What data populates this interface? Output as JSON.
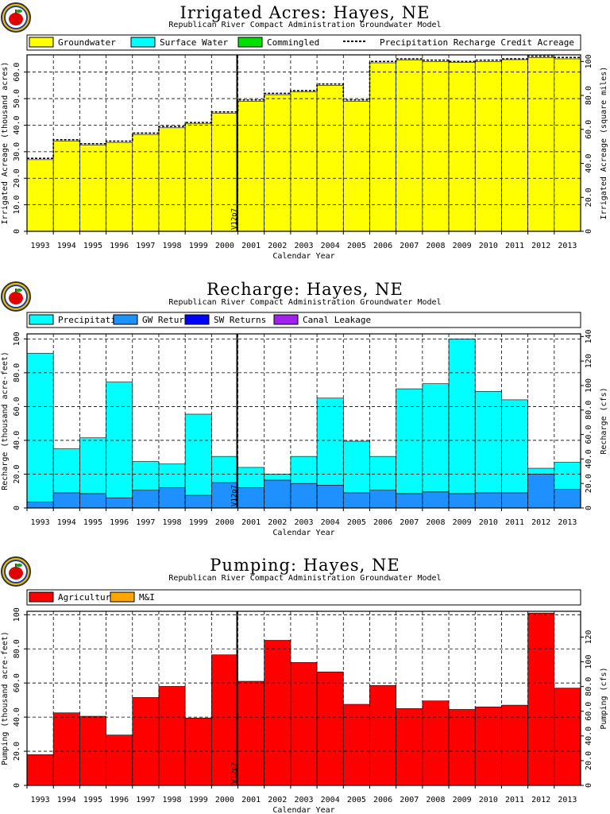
{
  "chart_data": [
    {
      "type": "bar",
      "title": "Irrigated Acres: Hayes, NE",
      "subtitle": "Republican River Compact Administration Groundwater Model",
      "xlabel": "Calendar Year",
      "ylabel": "Irrigated Acreage (thousand acres)",
      "ylabel_right": "Irrigated Acreage (square miles)",
      "categories": [
        "1993",
        "1994",
        "1995",
        "1996",
        "1997",
        "1998",
        "1999",
        "2000",
        "2001",
        "2002",
        "2003",
        "2004",
        "2005",
        "2006",
        "2007",
        "2008",
        "2009",
        "2010",
        "2011",
        "2012",
        "2013"
      ],
      "ylim": [
        0,
        66.5
      ],
      "yticks": [
        "0",
        "10.0",
        "20.0",
        "30.0",
        "40.0",
        "50.0",
        "60.0"
      ],
      "yticks_right": [
        "0",
        "20.0",
        "40.0",
        "60.0",
        "80.0",
        "100"
      ],
      "right_max": 103.9,
      "vline_label": "V12p7",
      "vline_after": "2000",
      "series": [
        {
          "name": "Groundwater",
          "color": "#ffff00",
          "values": [
            27.0,
            34.0,
            32.5,
            33.5,
            36.5,
            39.0,
            40.5,
            44.5,
            49.0,
            51.5,
            52.5,
            55.0,
            49.0,
            63.5,
            64.5,
            64.0,
            63.7,
            64.0,
            64.7,
            65.5,
            65.0
          ]
        },
        {
          "name": "Surface Water",
          "color": "#00ffff",
          "values": [
            0,
            0,
            0,
            0,
            0,
            0,
            0,
            0,
            0,
            0,
            0,
            0,
            0,
            0,
            0,
            0,
            0,
            0,
            0,
            0,
            0
          ]
        },
        {
          "name": "Commingled",
          "color": "#00e000",
          "values": [
            0,
            0,
            0,
            0,
            0,
            0,
            0,
            0,
            0,
            0,
            0,
            0,
            0,
            0,
            0,
            0,
            0,
            0,
            0,
            0,
            0
          ]
        }
      ],
      "line_series": {
        "name": "Precipitation Recharge Credit Acreage",
        "values": [
          27.5,
          34.5,
          33.0,
          34.0,
          37.0,
          39.5,
          41.0,
          45.0,
          49.5,
          52.0,
          53.0,
          55.5,
          49.5,
          64.0,
          65.0,
          64.5,
          64.0,
          64.5,
          65.0,
          66.0,
          65.5
        ]
      }
    },
    {
      "type": "bar",
      "title": "Recharge: Hayes, NE",
      "subtitle": "Republican River Compact Administration Groundwater Model",
      "xlabel": "Calendar Year",
      "ylabel": "Recharge (thousand acre-feet)",
      "ylabel_right": "Recharge (cfs)",
      "categories": [
        "1993",
        "1994",
        "1995",
        "1996",
        "1997",
        "1998",
        "1999",
        "2000",
        "2001",
        "2002",
        "2003",
        "2004",
        "2005",
        "2006",
        "2007",
        "2008",
        "2009",
        "2010",
        "2011",
        "2012",
        "2013"
      ],
      "ylim": [
        0,
        103
      ],
      "yticks": [
        "0",
        "20.0",
        "40.0",
        "60.0",
        "80.0",
        "100"
      ],
      "yticks_right": [
        "0",
        "20.0",
        "40.0",
        "60.0",
        "80.0",
        "100",
        "120",
        "140"
      ],
      "right_max": 142.2,
      "vline_label": "V12p7",
      "vline_after": "2000",
      "series": [
        {
          "name": "GW Returns",
          "color": "#1e90ff",
          "values": [
            3.5,
            9.0,
            8.5,
            6.0,
            10.5,
            12.0,
            7.5,
            15.0,
            12.0,
            16.5,
            14.5,
            13.5,
            9.0,
            10.5,
            8.5,
            9.5,
            8.5,
            9.0,
            9.0,
            20.0,
            11.0
          ]
        },
        {
          "name": "Precipitation",
          "color": "#00ffff",
          "values": [
            88.0,
            26.0,
            33.0,
            68.5,
            17.0,
            14.0,
            48.0,
            15.5,
            12.0,
            3.5,
            16.0,
            51.5,
            30.5,
            20.0,
            62.0,
            64.0,
            91.5,
            60.0,
            55.0,
            3.5,
            16.0
          ]
        },
        {
          "name": "SW Returns",
          "color": "#0000ff",
          "values": [
            0,
            0,
            0,
            0,
            0,
            0,
            0,
            0,
            0,
            0,
            0,
            0,
            0,
            0,
            0,
            0,
            0,
            0,
            0,
            0,
            0
          ]
        },
        {
          "name": "Canal Leakage",
          "color": "#a020f0",
          "values": [
            0,
            0,
            0,
            0,
            0,
            0,
            0,
            0,
            0,
            0,
            0,
            0,
            0,
            0,
            0,
            0,
            0,
            0,
            0,
            0,
            0
          ]
        }
      ],
      "legend": [
        {
          "name": "Precipitation",
          "color": "#00ffff"
        },
        {
          "name": "GW Returns",
          "color": "#1e90ff"
        },
        {
          "name": "SW Returns",
          "color": "#0000ff"
        },
        {
          "name": "Canal Leakage",
          "color": "#a020f0"
        }
      ]
    },
    {
      "type": "bar",
      "title": "Pumping: Hayes, NE",
      "subtitle": "Republican River Compact Administration Groundwater Model",
      "xlabel": "Calendar Year",
      "ylabel": "Pumping (thousand acre-feet)",
      "ylabel_right": "Pumping (cfs)",
      "categories": [
        "1993",
        "1994",
        "1995",
        "1996",
        "1997",
        "1998",
        "1999",
        "2000",
        "2001",
        "2002",
        "2003",
        "2004",
        "2005",
        "2006",
        "2007",
        "2008",
        "2009",
        "2010",
        "2011",
        "2012",
        "2013"
      ],
      "ylim": [
        0,
        102
      ],
      "yticks": [
        "0",
        "20.0",
        "40.0",
        "60.0",
        "80.0",
        "100"
      ],
      "yticks_right": [
        "0",
        "20.0",
        "40.0",
        "60.0",
        "80.0",
        "100",
        "120"
      ],
      "right_max": 140.9,
      "vline_label": "V12p7",
      "vline_after": "2000",
      "series": [
        {
          "name": "Agricultural",
          "color": "#ff0000",
          "values": [
            18.0,
            42.5,
            40.5,
            29.5,
            51.5,
            58.0,
            39.5,
            76.5,
            61.0,
            85.0,
            72.0,
            66.5,
            47.5,
            58.5,
            45.0,
            49.5,
            44.5,
            46.0,
            47.0,
            101.0,
            57.0
          ]
        },
        {
          "name": "M&I",
          "color": "#ffa500",
          "values": [
            0,
            0,
            0,
            0,
            0,
            0,
            0,
            0,
            0,
            0,
            0,
            0,
            0,
            0,
            0,
            0,
            0,
            0,
            0,
            0,
            0
          ]
        }
      ]
    }
  ]
}
